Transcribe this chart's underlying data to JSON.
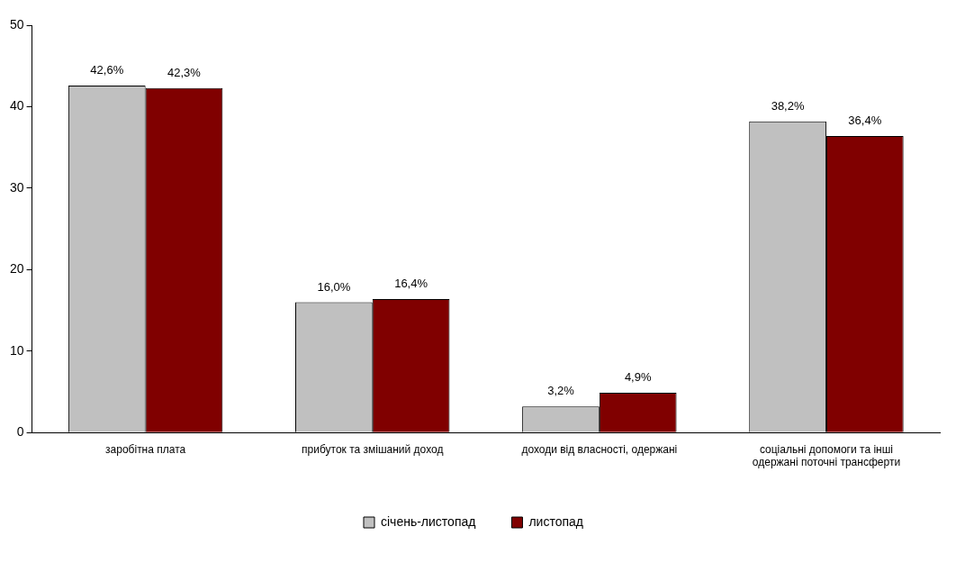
{
  "chart_data": {
    "type": "bar",
    "categories": [
      "заробітна плата",
      "прибуток та змішаний доход",
      "доходи від власності, одержані",
      "соціальні допомоги та інші одержані поточні трансферти"
    ],
    "series": [
      {
        "name": "січень-листопад",
        "color": "#c0c0c0",
        "values": [
          42.6,
          16.0,
          3.2,
          38.2
        ],
        "value_labels": [
          "42,6%",
          "16,0%",
          "3,2%",
          "38,2%"
        ]
      },
      {
        "name": "листопад",
        "color": "#800000",
        "values": [
          42.3,
          16.4,
          4.9,
          36.4
        ],
        "value_labels": [
          "42,3%",
          "16,4%",
          "4,9%",
          "36,4%"
        ]
      }
    ],
    "ylim": [
      0,
      50
    ],
    "yticks": [
      0,
      10,
      20,
      30,
      40,
      50
    ],
    "grid": false,
    "legend": "bottom"
  }
}
